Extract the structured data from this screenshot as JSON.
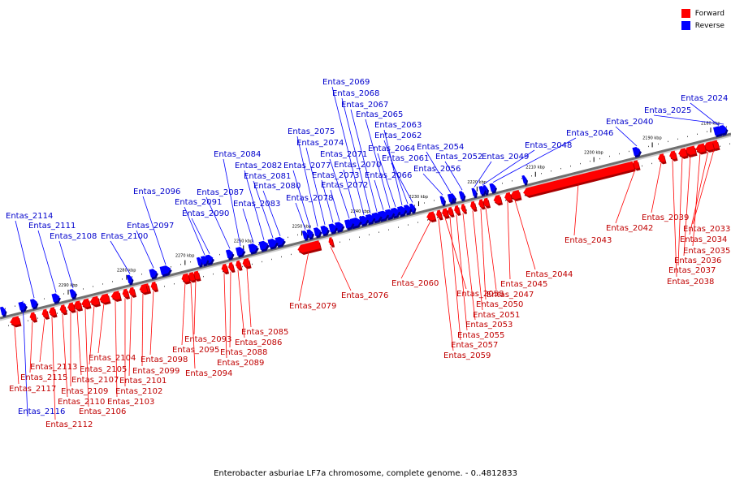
{
  "legend": {
    "forward_label": "Forward",
    "reverse_label": "Reverse",
    "forward_color": "#ff0000",
    "reverse_color": "#0000ff"
  },
  "caption": "Enterobacter asburiae LF7a chromosome, complete genome. - 0..4812833",
  "axis": {
    "start_kbp": 2290,
    "end_kbp": 2180,
    "tick_step_kbp": 10,
    "unit": "kbp",
    "tick_labels": [
      "2290 kbp",
      "2280 kbp",
      "2270 kbp",
      "2260 kbp",
      "2250 kbp",
      "2240 kbp",
      "2230 kbp",
      "2220 kbp",
      "2210 kbp",
      "2200 kbp",
      "2190 kbp",
      "2180 kbp"
    ]
  },
  "genes": {
    "reverse": [
      "Entas_2024",
      "Entas_2025",
      "Entas_2040",
      "Entas_2046",
      "Entas_2048",
      "Entas_2049",
      "Entas_2052",
      "Entas_2054",
      "Entas_2056",
      "Entas_2061",
      "Entas_2062",
      "Entas_2063",
      "Entas_2064",
      "Entas_2065",
      "Entas_2066",
      "Entas_2067",
      "Entas_2068",
      "Entas_2069",
      "Entas_2070",
      "Entas_2071",
      "Entas_2072",
      "Entas_2073",
      "Entas_2074",
      "Entas_2075",
      "Entas_2077",
      "Entas_2078",
      "Entas_2080",
      "Entas_2081",
      "Entas_2082",
      "Entas_2083",
      "Entas_2084",
      "Entas_2087",
      "Entas_2090",
      "Entas_2091",
      "Entas_2096",
      "Entas_2097",
      "Entas_2100",
      "Entas_2108",
      "Entas_2111",
      "Entas_2114",
      "Entas_2116"
    ],
    "forward": [
      "Entas_2033",
      "Entas_2034",
      "Entas_2035",
      "Entas_2036",
      "Entas_2037",
      "Entas_2038",
      "Entas_2039",
      "Entas_2042",
      "Entas_2043",
      "Entas_2044",
      "Entas_2045",
      "Entas_2047",
      "Entas_2050",
      "Entas_2051",
      "Entas_2053",
      "Entas_2055",
      "Entas_2057",
      "Entas_2058",
      "Entas_2059",
      "Entas_2060",
      "Entas_2076",
      "Entas_2079",
      "Entas_2085",
      "Entas_2086",
      "Entas_2088",
      "Entas_2089",
      "Entas_2093",
      "Entas_2094",
      "Entas_2095",
      "Entas_2098",
      "Entas_2099",
      "Entas_2101",
      "Entas_2102",
      "Entas_2103",
      "Entas_2104",
      "Entas_2105",
      "Entas_2106",
      "Entas_2107",
      "Entas_2109",
      "Entas_2110",
      "Entas_2112",
      "Entas_2113",
      "Entas_2115",
      "Entas_2117"
    ]
  }
}
